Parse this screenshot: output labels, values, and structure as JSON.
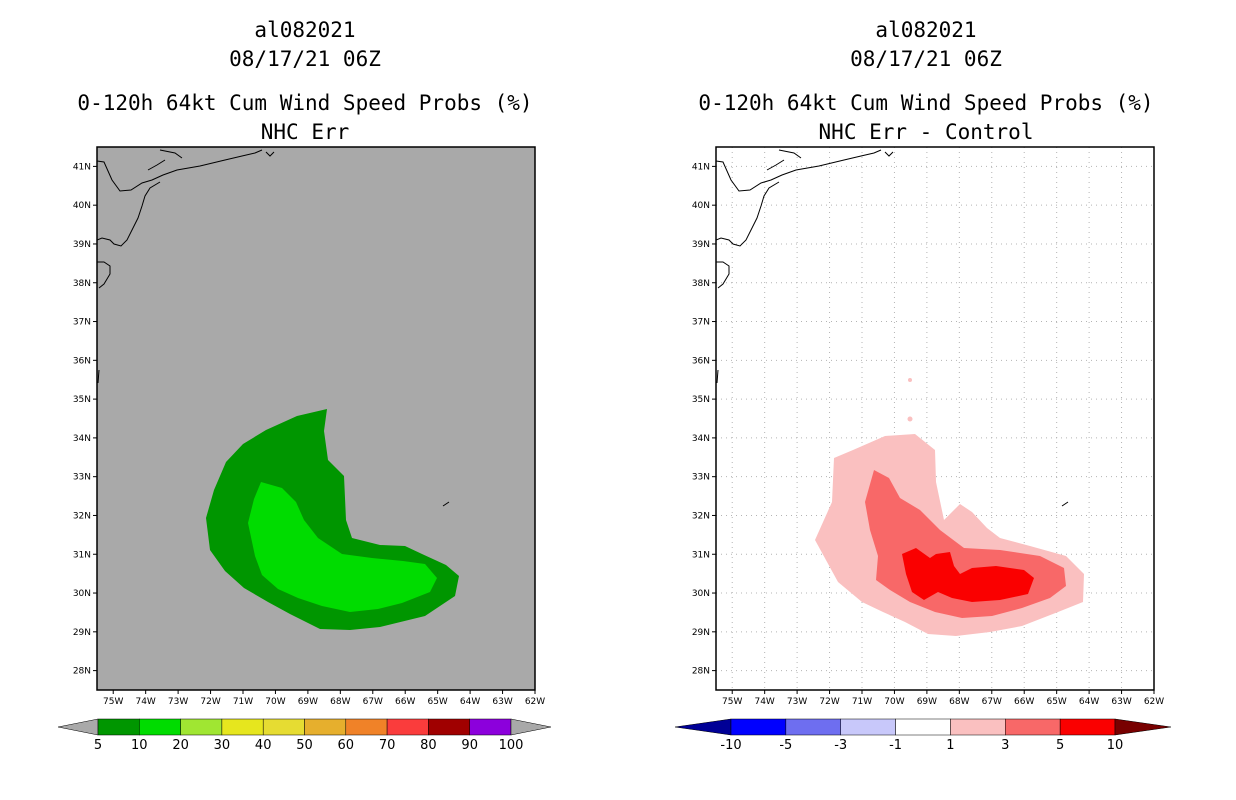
{
  "left_panel": {
    "storm_id": "al082021",
    "datetime": "08/17/21 06Z",
    "title": "0-120h 64kt Cum Wind Speed Probs (%)",
    "subtitle": "NHC Err",
    "colorbar": {
      "labels": [
        "5",
        "10",
        "20",
        "30",
        "40",
        "50",
        "60",
        "70",
        "80",
        "90",
        "100"
      ],
      "colors": [
        "#009600",
        "#00dc00",
        "#a0e632",
        "#e6e61e",
        "#e6dc32",
        "#e6af2d",
        "#f08228",
        "#fa3c3c",
        "#a00000",
        "#8c00dc"
      ]
    },
    "background_color": "#a9a9a9"
  },
  "right_panel": {
    "storm_id": "al082021",
    "datetime": "08/17/21 06Z",
    "title": "0-120h 64kt Cum Wind Speed Probs (%)",
    "subtitle": "NHC Err - Control",
    "colorbar": {
      "labels": [
        "-10",
        "-5",
        "-3",
        "-1",
        "1",
        "3",
        "5",
        "10"
      ],
      "colors": [
        "#000096",
        "#0000ff",
        "#6e6ef0",
        "#c8c8fa",
        "#ffffff",
        "#fac0c0",
        "#f86868",
        "#fa0000",
        "#780000"
      ]
    }
  },
  "map_axes": {
    "lat_labels": [
      "41N",
      "40N",
      "39N",
      "38N",
      "37N",
      "36N",
      "35N",
      "34N",
      "33N",
      "32N",
      "31N",
      "30N",
      "29N",
      "28N"
    ],
    "lon_labels": [
      "75W",
      "74W",
      "73W",
      "72W",
      "71W",
      "70W",
      "69W",
      "68W",
      "67W",
      "66W",
      "65W",
      "64W",
      "63W",
      "62W"
    ],
    "lon_range": [
      -75.5,
      -62
    ],
    "lat_range": [
      27.5,
      41.5
    ]
  }
}
